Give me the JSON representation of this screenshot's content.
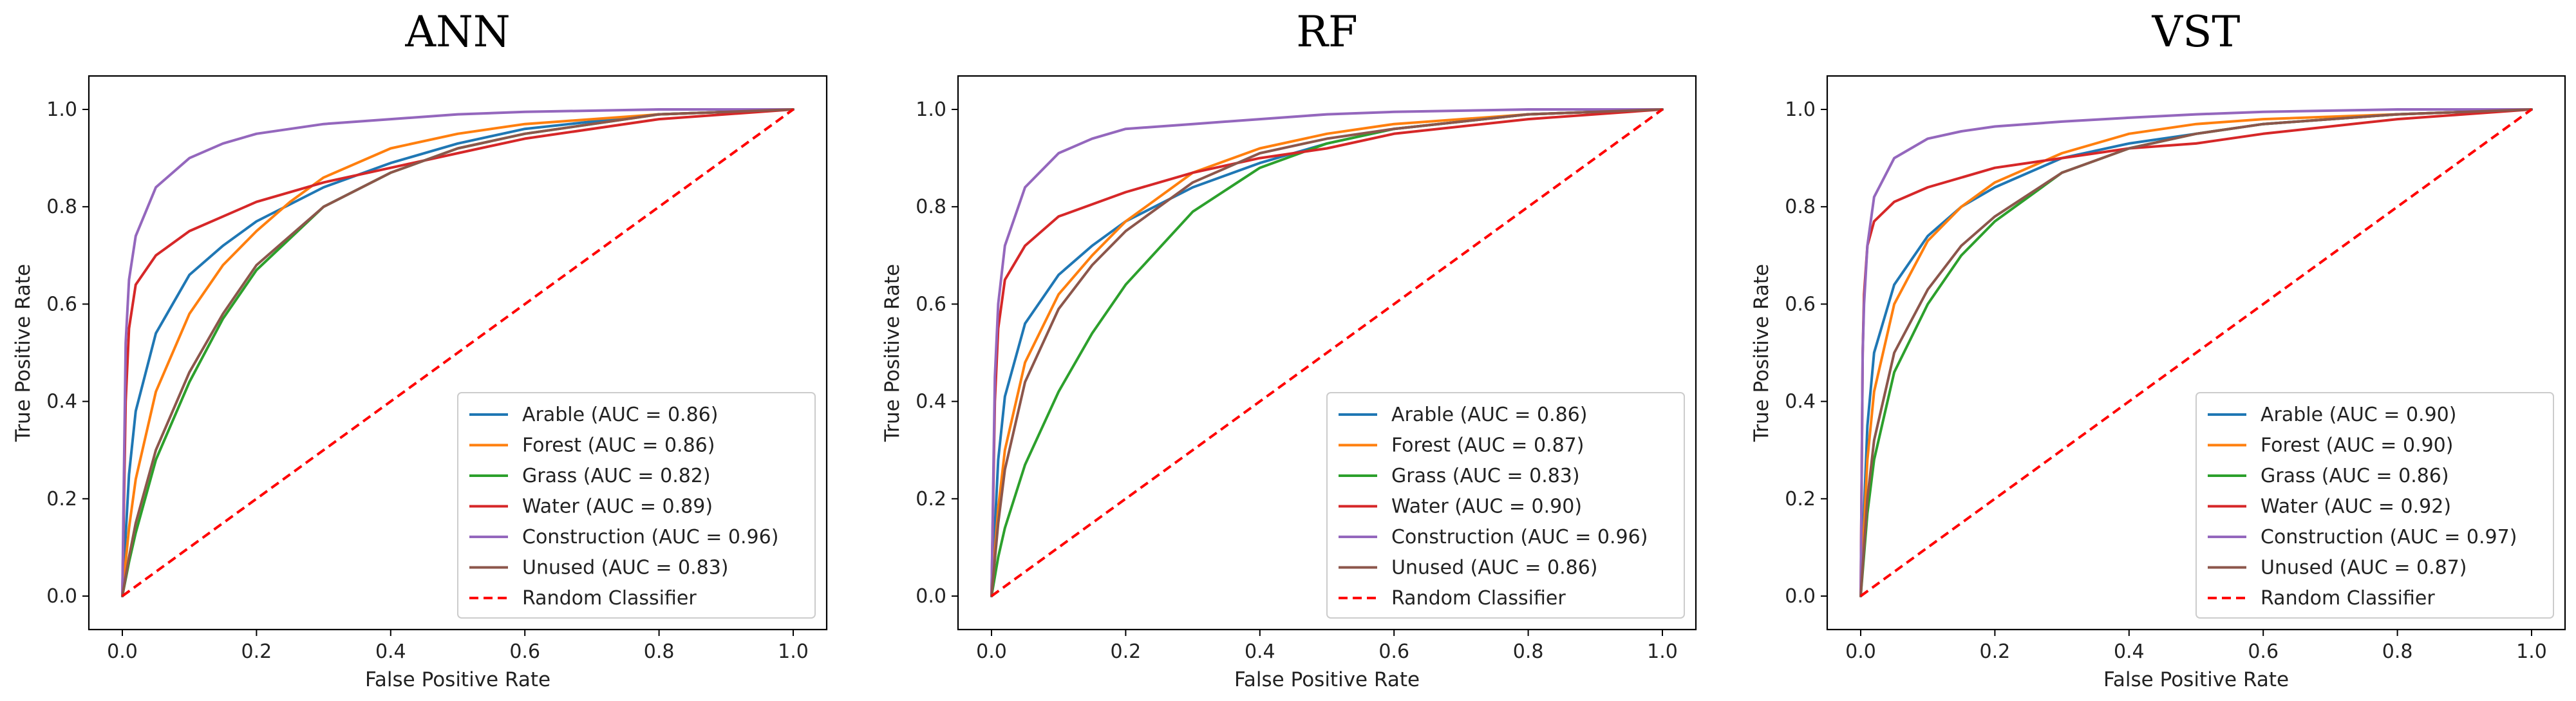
{
  "chart_data": [
    {
      "type": "line",
      "title": "ANN",
      "xlabel": "False Positive Rate",
      "ylabel": "True Positive Rate",
      "xlim": [
        0,
        1
      ],
      "ylim": [
        0,
        1
      ],
      "xticks": [
        "0.0",
        "0.2",
        "0.4",
        "0.6",
        "0.8",
        "1.0"
      ],
      "yticks": [
        "0.0",
        "0.2",
        "0.4",
        "0.6",
        "0.8",
        "1.0"
      ],
      "legend_position": "bottom-right",
      "series": [
        {
          "name": "Arable (AUC = 0.86)",
          "color": "#1f77b4",
          "dashed": false,
          "x": [
            0,
            0.01,
            0.02,
            0.05,
            0.1,
            0.15,
            0.2,
            0.3,
            0.4,
            0.5,
            0.6,
            0.8,
            1.0
          ],
          "y": [
            0,
            0.25,
            0.38,
            0.54,
            0.66,
            0.72,
            0.77,
            0.84,
            0.89,
            0.93,
            0.96,
            0.99,
            1.0
          ]
        },
        {
          "name": "Forest (AUC = 0.86)",
          "color": "#ff7f0e",
          "dashed": false,
          "x": [
            0,
            0.01,
            0.02,
            0.05,
            0.1,
            0.15,
            0.2,
            0.25,
            0.3,
            0.4,
            0.5,
            0.6,
            0.8,
            1.0
          ],
          "y": [
            0,
            0.14,
            0.24,
            0.42,
            0.58,
            0.68,
            0.75,
            0.81,
            0.86,
            0.92,
            0.95,
            0.97,
            0.99,
            1.0
          ]
        },
        {
          "name": "Grass (AUC = 0.82)",
          "color": "#2ca02c",
          "dashed": false,
          "x": [
            0,
            0.01,
            0.02,
            0.05,
            0.1,
            0.15,
            0.2,
            0.3,
            0.4,
            0.5,
            0.6,
            0.8,
            1.0
          ],
          "y": [
            0,
            0.07,
            0.13,
            0.28,
            0.44,
            0.57,
            0.67,
            0.8,
            0.87,
            0.92,
            0.95,
            0.99,
            1.0
          ]
        },
        {
          "name": "Water (AUC = 0.89)",
          "color": "#d62728",
          "dashed": false,
          "x": [
            0,
            0.005,
            0.01,
            0.02,
            0.05,
            0.1,
            0.2,
            0.3,
            0.4,
            0.5,
            0.6,
            0.8,
            1.0
          ],
          "y": [
            0,
            0.4,
            0.55,
            0.64,
            0.7,
            0.75,
            0.81,
            0.85,
            0.88,
            0.91,
            0.94,
            0.98,
            1.0
          ]
        },
        {
          "name": "Construction (AUC = 0.96)",
          "color": "#9467bd",
          "dashed": false,
          "x": [
            0,
            0.005,
            0.01,
            0.02,
            0.05,
            0.1,
            0.15,
            0.2,
            0.3,
            0.4,
            0.5,
            0.6,
            0.8,
            1.0
          ],
          "y": [
            0,
            0.52,
            0.65,
            0.74,
            0.84,
            0.9,
            0.93,
            0.95,
            0.97,
            0.98,
            0.99,
            0.995,
            1.0,
            1.0
          ]
        },
        {
          "name": "Unused (AUC = 0.83)",
          "color": "#8c564b",
          "dashed": false,
          "x": [
            0,
            0.01,
            0.02,
            0.05,
            0.1,
            0.15,
            0.2,
            0.3,
            0.4,
            0.5,
            0.6,
            0.8,
            1.0
          ],
          "y": [
            0,
            0.08,
            0.15,
            0.3,
            0.46,
            0.58,
            0.68,
            0.8,
            0.87,
            0.92,
            0.95,
            0.99,
            1.0
          ]
        },
        {
          "name": "Random Classifier",
          "color": "#ff0000",
          "dashed": true,
          "x": [
            0,
            1
          ],
          "y": [
            0,
            1
          ]
        }
      ]
    },
    {
      "type": "line",
      "title": "RF",
      "xlabel": "False Positive Rate",
      "ylabel": "True Positive Rate",
      "xlim": [
        0,
        1
      ],
      "ylim": [
        0,
        1
      ],
      "xticks": [
        "0.0",
        "0.2",
        "0.4",
        "0.6",
        "0.8",
        "1.0"
      ],
      "yticks": [
        "0.0",
        "0.2",
        "0.4",
        "0.6",
        "0.8",
        "1.0"
      ],
      "legend_position": "bottom-right",
      "series": [
        {
          "name": "Arable (AUC = 0.86)",
          "color": "#1f77b4",
          "dashed": false,
          "x": [
            0,
            0.01,
            0.02,
            0.05,
            0.1,
            0.15,
            0.2,
            0.3,
            0.4,
            0.5,
            0.6,
            0.8,
            1.0
          ],
          "y": [
            0,
            0.28,
            0.41,
            0.56,
            0.66,
            0.72,
            0.77,
            0.84,
            0.89,
            0.93,
            0.96,
            0.99,
            1.0
          ]
        },
        {
          "name": "Forest (AUC = 0.87)",
          "color": "#ff7f0e",
          "dashed": false,
          "x": [
            0,
            0.01,
            0.02,
            0.05,
            0.1,
            0.15,
            0.2,
            0.3,
            0.4,
            0.5,
            0.6,
            0.8,
            1.0
          ],
          "y": [
            0,
            0.18,
            0.3,
            0.48,
            0.62,
            0.7,
            0.77,
            0.87,
            0.92,
            0.95,
            0.97,
            0.99,
            1.0
          ]
        },
        {
          "name": "Grass (AUC = 0.83)",
          "color": "#2ca02c",
          "dashed": false,
          "x": [
            0,
            0.01,
            0.02,
            0.05,
            0.1,
            0.15,
            0.2,
            0.3,
            0.4,
            0.5,
            0.6,
            0.8,
            1.0
          ],
          "y": [
            0,
            0.08,
            0.14,
            0.27,
            0.42,
            0.54,
            0.64,
            0.79,
            0.88,
            0.93,
            0.96,
            0.99,
            1.0
          ]
        },
        {
          "name": "Water (AUC = 0.90)",
          "color": "#d62728",
          "dashed": false,
          "x": [
            0,
            0.005,
            0.01,
            0.02,
            0.05,
            0.1,
            0.2,
            0.3,
            0.4,
            0.5,
            0.6,
            0.8,
            1.0
          ],
          "y": [
            0,
            0.4,
            0.55,
            0.65,
            0.72,
            0.78,
            0.83,
            0.87,
            0.9,
            0.92,
            0.95,
            0.98,
            1.0
          ]
        },
        {
          "name": "Construction (AUC = 0.96)",
          "color": "#9467bd",
          "dashed": false,
          "x": [
            0,
            0.005,
            0.01,
            0.02,
            0.05,
            0.1,
            0.15,
            0.2,
            0.3,
            0.4,
            0.5,
            0.6,
            0.8,
            1.0
          ],
          "y": [
            0,
            0.45,
            0.6,
            0.72,
            0.84,
            0.91,
            0.94,
            0.96,
            0.97,
            0.98,
            0.99,
            0.995,
            1.0,
            1.0
          ]
        },
        {
          "name": "Unused (AUC = 0.86)",
          "color": "#8c564b",
          "dashed": false,
          "x": [
            0,
            0.01,
            0.02,
            0.05,
            0.1,
            0.15,
            0.2,
            0.3,
            0.4,
            0.5,
            0.6,
            0.8,
            1.0
          ],
          "y": [
            0,
            0.15,
            0.26,
            0.44,
            0.59,
            0.68,
            0.75,
            0.85,
            0.91,
            0.94,
            0.96,
            0.99,
            1.0
          ]
        },
        {
          "name": "Random Classifier",
          "color": "#ff0000",
          "dashed": true,
          "x": [
            0,
            1
          ],
          "y": [
            0,
            1
          ]
        }
      ]
    },
    {
      "type": "line",
      "title": "VST",
      "xlabel": "False Positive Rate",
      "ylabel": "True Positive Rate",
      "xlim": [
        0,
        1
      ],
      "ylim": [
        0,
        1
      ],
      "xticks": [
        "0.0",
        "0.2",
        "0.4",
        "0.6",
        "0.8",
        "1.0"
      ],
      "yticks": [
        "0.0",
        "0.2",
        "0.4",
        "0.6",
        "0.8",
        "1.0"
      ],
      "legend_position": "bottom-right",
      "series": [
        {
          "name": "Arable (AUC = 0.90)",
          "color": "#1f77b4",
          "dashed": false,
          "x": [
            0,
            0.01,
            0.02,
            0.05,
            0.1,
            0.15,
            0.2,
            0.3,
            0.4,
            0.5,
            0.6,
            0.8,
            1.0
          ],
          "y": [
            0,
            0.35,
            0.5,
            0.64,
            0.74,
            0.8,
            0.84,
            0.9,
            0.93,
            0.95,
            0.97,
            0.99,
            1.0
          ]
        },
        {
          "name": "Forest (AUC = 0.90)",
          "color": "#ff7f0e",
          "dashed": false,
          "x": [
            0,
            0.01,
            0.02,
            0.05,
            0.1,
            0.15,
            0.2,
            0.3,
            0.4,
            0.5,
            0.6,
            0.8,
            1.0
          ],
          "y": [
            0,
            0.28,
            0.42,
            0.6,
            0.73,
            0.8,
            0.85,
            0.91,
            0.95,
            0.97,
            0.98,
            0.99,
            1.0
          ]
        },
        {
          "name": "Grass (AUC = 0.86)",
          "color": "#2ca02c",
          "dashed": false,
          "x": [
            0,
            0.01,
            0.02,
            0.05,
            0.1,
            0.15,
            0.2,
            0.3,
            0.4,
            0.5,
            0.6,
            0.8,
            1.0
          ],
          "y": [
            0,
            0.17,
            0.28,
            0.46,
            0.6,
            0.7,
            0.77,
            0.87,
            0.92,
            0.95,
            0.97,
            0.99,
            1.0
          ]
        },
        {
          "name": "Water (AUC = 0.92)",
          "color": "#d62728",
          "dashed": false,
          "x": [
            0,
            0.003,
            0.005,
            0.01,
            0.02,
            0.05,
            0.1,
            0.2,
            0.3,
            0.4,
            0.5,
            0.6,
            0.8,
            1.0
          ],
          "y": [
            0,
            0.5,
            0.62,
            0.72,
            0.77,
            0.81,
            0.84,
            0.88,
            0.9,
            0.92,
            0.93,
            0.95,
            0.98,
            1.0
          ]
        },
        {
          "name": "Construction (AUC = 0.97)",
          "color": "#9467bd",
          "dashed": false,
          "x": [
            0,
            0.003,
            0.005,
            0.01,
            0.02,
            0.05,
            0.1,
            0.15,
            0.2,
            0.3,
            0.4,
            0.5,
            0.6,
            0.8,
            1.0
          ],
          "y": [
            0,
            0.5,
            0.6,
            0.72,
            0.82,
            0.9,
            0.94,
            0.955,
            0.965,
            0.975,
            0.983,
            0.99,
            0.995,
            1.0,
            1.0
          ]
        },
        {
          "name": "Unused (AUC = 0.87)",
          "color": "#8c564b",
          "dashed": false,
          "x": [
            0,
            0.01,
            0.02,
            0.05,
            0.1,
            0.15,
            0.2,
            0.3,
            0.4,
            0.5,
            0.6,
            0.8,
            1.0
          ],
          "y": [
            0,
            0.2,
            0.32,
            0.5,
            0.63,
            0.72,
            0.78,
            0.87,
            0.92,
            0.95,
            0.97,
            0.99,
            1.0
          ]
        },
        {
          "name": "Random Classifier",
          "color": "#ff0000",
          "dashed": true,
          "x": [
            0,
            1
          ],
          "y": [
            0,
            1
          ]
        }
      ]
    }
  ]
}
